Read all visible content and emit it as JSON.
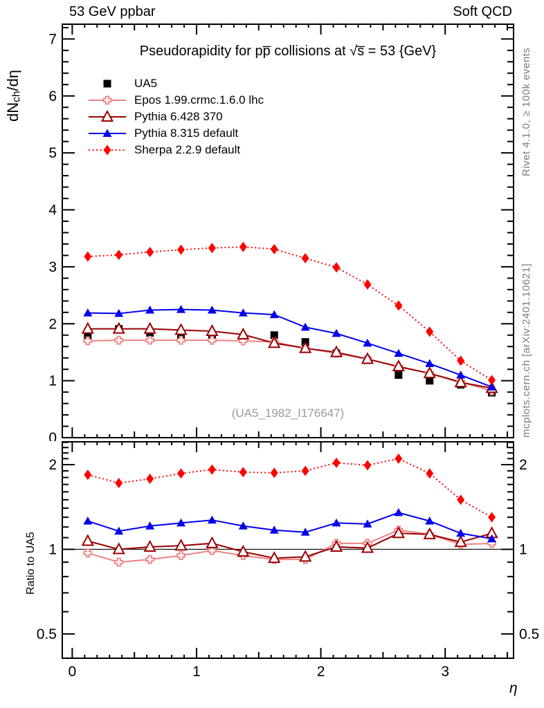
{
  "header": {
    "left": "53 GeV ppbar",
    "right": "Soft QCD"
  },
  "side_notes": {
    "top": "Rivet 4.1.0, ≥ 100k events",
    "bottom": "mcplots.cern.ch [arXiv:2401.10621]"
  },
  "watermark": "(UA5_1982_I176647)",
  "chart_data": [
    {
      "type": "line",
      "title": "Pseudorapidity for pp̅ collisions at √s̅ = 53 {GeV}",
      "ylabel": "dN_{ch}/dη",
      "xlim": [
        -0.08,
        3.55
      ],
      "ylim": [
        0,
        7.26
      ],
      "yticks": [
        0,
        1,
        2,
        3,
        4,
        5,
        6,
        7
      ],
      "xticks": [
        0,
        1,
        2,
        3
      ],
      "grid": false,
      "legend_position": "top-left",
      "x": [
        0.125,
        0.375,
        0.625,
        0.875,
        1.125,
        1.375,
        1.625,
        1.875,
        2.125,
        2.375,
        2.625,
        2.875,
        3.125,
        3.375
      ],
      "series": [
        {
          "name": "UA5",
          "color": "#000000",
          "marker": "square-filled",
          "line": "none",
          "values": [
            1.78,
            1.91,
            1.84,
            1.81,
            1.78,
            1.75,
            1.8,
            1.68,
            1.48,
            1.36,
            1.1,
            1.0,
            0.93,
            0.79
          ]
        },
        {
          "name": "Epos 1.99.crmc.1.6.0 lhc",
          "color": "#f08080",
          "marker": "cross-open",
          "line": "solid",
          "values": [
            1.7,
            1.71,
            1.71,
            1.71,
            1.71,
            1.7,
            1.68,
            1.57,
            1.48,
            1.38,
            1.24,
            1.13,
            0.98,
            0.82
          ]
        },
        {
          "name": "Pythia 6.428 370",
          "color": "#990000",
          "marker": "triangle-open",
          "line": "solid",
          "values": [
            1.91,
            1.91,
            1.91,
            1.89,
            1.87,
            1.81,
            1.66,
            1.57,
            1.5,
            1.38,
            1.25,
            1.13,
            0.97,
            0.87
          ]
        },
        {
          "name": "Pythia 8.315 default",
          "color": "#0000ee",
          "marker": "triangle-filled",
          "line": "solid",
          "values": [
            2.19,
            2.18,
            2.24,
            2.25,
            2.24,
            2.19,
            2.16,
            1.94,
            1.83,
            1.66,
            1.48,
            1.3,
            1.1,
            0.89
          ]
        },
        {
          "name": "Sherpa 2.2.9 default",
          "color": "#ff0000",
          "marker": "diamond-filled",
          "line": "dotted",
          "values": [
            3.18,
            3.21,
            3.26,
            3.3,
            3.33,
            3.35,
            3.31,
            3.15,
            2.99,
            2.69,
            2.32,
            1.86,
            1.35,
            1.01
          ]
        }
      ]
    },
    {
      "type": "line",
      "ylabel": "Ratio to UA5",
      "xlabel": "η",
      "yscale": "log",
      "xlim": [
        -0.08,
        3.55
      ],
      "ylim": [
        0.41,
        2.41
      ],
      "yticks": [
        0.5,
        1,
        2
      ],
      "xticks": [
        0,
        1,
        2,
        3
      ],
      "ref_line": 1,
      "x": [
        0.125,
        0.375,
        0.625,
        0.875,
        1.125,
        1.375,
        1.625,
        1.875,
        2.125,
        2.375,
        2.625,
        2.875,
        3.125,
        3.375
      ],
      "series": [
        {
          "name": "Epos 1.99.crmc.1.6.0 lhc",
          "color": "#f08080",
          "marker": "cross-open",
          "line": "solid",
          "values": [
            0.97,
            0.9,
            0.92,
            0.95,
            0.99,
            0.95,
            0.92,
            0.92,
            1.05,
            1.05,
            1.17,
            1.13,
            1.04,
            1.05
          ]
        },
        {
          "name": "Pythia 6.428 370",
          "color": "#990000",
          "marker": "triangle-open",
          "line": "solid",
          "values": [
            1.07,
            1.0,
            1.02,
            1.03,
            1.05,
            0.98,
            0.93,
            0.94,
            1.02,
            1.01,
            1.14,
            1.13,
            1.06,
            1.14
          ]
        },
        {
          "name": "Pythia 8.315 default",
          "color": "#0000ee",
          "marker": "triangle-filled",
          "line": "solid",
          "values": [
            1.26,
            1.16,
            1.21,
            1.24,
            1.27,
            1.21,
            1.17,
            1.15,
            1.24,
            1.23,
            1.35,
            1.26,
            1.14,
            1.09
          ]
        },
        {
          "name": "Sherpa 2.2.9 default",
          "color": "#ff0000",
          "marker": "diamond-filled",
          "line": "dotted",
          "values": [
            1.84,
            1.72,
            1.78,
            1.86,
            1.92,
            1.88,
            1.87,
            1.9,
            2.03,
            1.99,
            2.1,
            1.86,
            1.5,
            1.3
          ]
        }
      ]
    }
  ]
}
